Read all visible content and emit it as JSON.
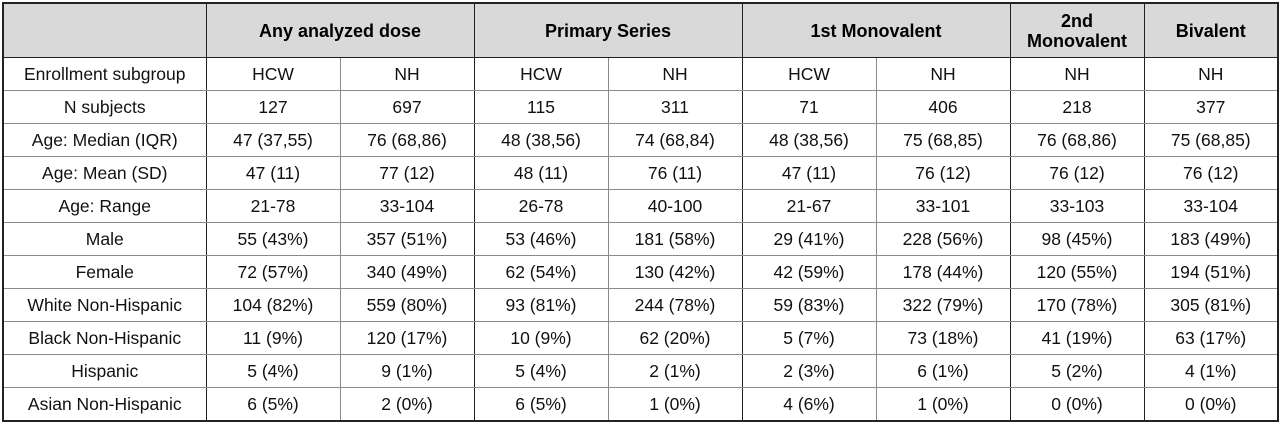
{
  "table": {
    "groups": [
      "Any analyzed dose",
      "Primary Series",
      "1st Monovalent",
      "2nd Monovalent",
      "Bivalent"
    ],
    "rows": [
      [
        "Enrollment subgroup",
        "HCW",
        "NH",
        "HCW",
        "NH",
        "HCW",
        "NH",
        "NH",
        "NH"
      ],
      [
        "N subjects",
        "127",
        "697",
        "115",
        "311",
        "71",
        "406",
        "218",
        "377"
      ],
      [
        "Age: Median (IQR)",
        "47 (37,55)",
        "76 (68,86)",
        "48 (38,56)",
        "74 (68,84)",
        "48 (38,56)",
        "75 (68,85)",
        "76 (68,86)",
        "75 (68,85)"
      ],
      [
        "Age: Mean (SD)",
        "47 (11)",
        "77 (12)",
        "48 (11)",
        "76 (11)",
        "47 (11)",
        "76 (12)",
        "76 (12)",
        "76 (12)"
      ],
      [
        "Age: Range",
        "21-78",
        "33-104",
        "26-78",
        "40-100",
        "21-67",
        "33-101",
        "33-103",
        "33-104"
      ],
      [
        "Male",
        "55 (43%)",
        "357 (51%)",
        "53 (46%)",
        "181 (58%)",
        "29 (41%)",
        "228 (56%)",
        "98 (45%)",
        "183 (49%)"
      ],
      [
        "Female",
        "72 (57%)",
        "340 (49%)",
        "62 (54%)",
        "130 (42%)",
        "42 (59%)",
        "178 (44%)",
        "120 (55%)",
        "194 (51%)"
      ],
      [
        "White Non-Hispanic",
        "104 (82%)",
        "559 (80%)",
        "93 (81%)",
        "244 (78%)",
        "59 (83%)",
        "322 (79%)",
        "170 (78%)",
        "305 (81%)"
      ],
      [
        "Black Non-Hispanic",
        "11 (9%)",
        "120 (17%)",
        "10 (9%)",
        "62 (20%)",
        "5 (7%)",
        "73 (18%)",
        "41 (19%)",
        "63 (17%)"
      ],
      [
        "Hispanic",
        "5 (4%)",
        "9 (1%)",
        "5 (4%)",
        "2 (1%)",
        "2 (3%)",
        "6 (1%)",
        "5 (2%)",
        "4 (1%)"
      ],
      [
        "Asian Non-Hispanic",
        "6 (5%)",
        "2 (0%)",
        "6 (5%)",
        "1 (0%)",
        "4 (6%)",
        "1 (0%)",
        "0 (0%)",
        "0 (0%)"
      ]
    ]
  }
}
